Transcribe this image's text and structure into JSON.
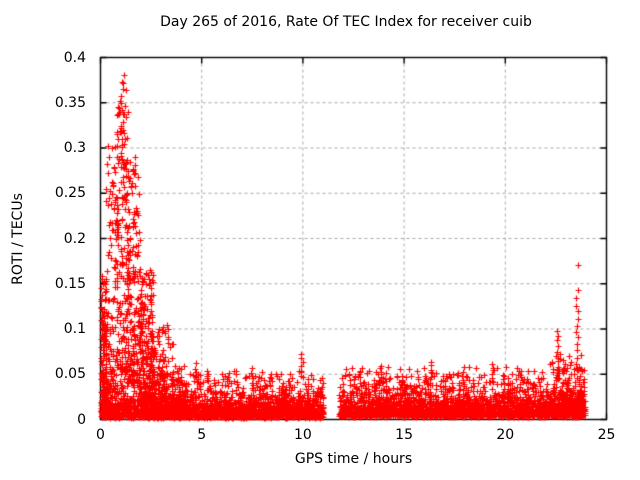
{
  "window": {
    "background": "#ffffff"
  },
  "chart_data": {
    "type": "scatter",
    "title": "Day 265 of 2016, Rate Of TEC Index for receiver cuib",
    "xlabel": "GPS time / hours",
    "ylabel": "ROTI / TECUs",
    "xlim": [
      0,
      25
    ],
    "ylim": [
      0,
      0.4
    ],
    "xticks": [
      0,
      5,
      10,
      15,
      20,
      25
    ],
    "xtick_labels": [
      "0",
      "5",
      "10",
      "15",
      "20",
      "25"
    ],
    "yticks": [
      0,
      0.05,
      0.1,
      0.15,
      0.2,
      0.25,
      0.3,
      0.35,
      0.4
    ],
    "ytick_labels": [
      "0",
      "0.05",
      "0.1",
      "0.15",
      "0.2",
      "0.25",
      "0.3",
      "0.35",
      "0.4"
    ],
    "grid": {
      "on": true,
      "style": "dashed",
      "color": "#a8a8a8",
      "dash": [
        3,
        3
      ]
    },
    "border_color": "#000000",
    "tick_length": 6,
    "ticks_mirrored": true,
    "legend": "none",
    "series_name": "ROTI",
    "marker": {
      "shape": "plus",
      "size": 7,
      "color": "#ff0000",
      "line_width": 1.2
    },
    "features": {
      "baseline_band_level": 0.02,
      "burst_hours": [
        0.2,
        3.5
      ],
      "burst_peak": 0.381,
      "data_gap_hours": [
        11.05,
        11.78
      ],
      "late_spike_hour": 23.6,
      "late_spike_peak": 0.171
    },
    "point_generation": {
      "seed": 1265,
      "bands": [
        {
          "x0": 0.0,
          "x1": 11.02,
          "n": 2450,
          "base": 0.002,
          "scale": 0.0115,
          "cap": 0.052
        },
        {
          "x0": 11.78,
          "x1": 23.95,
          "n": 2650,
          "base": 0.003,
          "scale": 0.012,
          "cap": 0.055
        }
      ],
      "clusters": [
        {
          "x0": 0.02,
          "x1": 0.3,
          "n": 150,
          "y0": 0.01,
          "y1": 0.16,
          "k": 1.25
        },
        {
          "x0": 0.25,
          "x1": 0.85,
          "n": 130,
          "y0": 0.03,
          "y1": 0.31,
          "k": 1.8
        },
        {
          "x0": 0.8,
          "x1": 1.35,
          "n": 170,
          "y0": 0.05,
          "y1": 0.375,
          "k": 1.2
        },
        {
          "x0": 1.3,
          "x1": 1.95,
          "n": 180,
          "y0": 0.04,
          "y1": 0.29,
          "k": 1.8
        },
        {
          "x0": 1.9,
          "x1": 2.6,
          "n": 200,
          "y0": 0.02,
          "y1": 0.175,
          "k": 1.4
        },
        {
          "x0": 2.5,
          "x1": 3.6,
          "n": 150,
          "y0": 0.012,
          "y1": 0.105,
          "k": 1.7
        },
        {
          "x0": 3.5,
          "x1": 4.3,
          "n": 60,
          "y0": 0.01,
          "y1": 0.06,
          "k": 1.5
        },
        {
          "x0": 22.1,
          "x1": 23.9,
          "n": 120,
          "y0": 0.01,
          "y1": 0.072,
          "k": 1.7
        }
      ],
      "columns": [
        {
          "x": 3.05,
          "n": 5,
          "y0": 0.045,
          "y1": 0.075
        },
        {
          "x": 4.7,
          "n": 5,
          "y0": 0.04,
          "y1": 0.065
        },
        {
          "x": 5.3,
          "n": 4,
          "y0": 0.04,
          "y1": 0.058
        },
        {
          "x": 6.3,
          "n": 4,
          "y0": 0.035,
          "y1": 0.055
        },
        {
          "x": 7.5,
          "n": 5,
          "y0": 0.035,
          "y1": 0.06
        },
        {
          "x": 8.4,
          "n": 4,
          "y0": 0.035,
          "y1": 0.055
        },
        {
          "x": 9.95,
          "n": 7,
          "y0": 0.045,
          "y1": 0.076
        },
        {
          "x": 12.5,
          "n": 4,
          "y0": 0.035,
          "y1": 0.05
        },
        {
          "x": 13.8,
          "n": 7,
          "y0": 0.04,
          "y1": 0.062
        },
        {
          "x": 14.9,
          "n": 4,
          "y0": 0.035,
          "y1": 0.052
        },
        {
          "x": 16.3,
          "n": 7,
          "y0": 0.04,
          "y1": 0.066
        },
        {
          "x": 17.9,
          "n": 5,
          "y0": 0.038,
          "y1": 0.06
        },
        {
          "x": 19.4,
          "n": 6,
          "y0": 0.04,
          "y1": 0.065
        },
        {
          "x": 20.8,
          "n": 5,
          "y0": 0.038,
          "y1": 0.056
        },
        {
          "x": 22.55,
          "n": 9,
          "y0": 0.05,
          "y1": 0.103
        },
        {
          "x": 23.55,
          "n": 13,
          "y0": 0.052,
          "y1": 0.146
        }
      ],
      "outliers": [
        [
          1.18,
          0.381
        ],
        [
          1.02,
          0.358
        ],
        [
          0.88,
          0.345
        ],
        [
          1.12,
          0.338
        ],
        [
          0.55,
          0.3
        ],
        [
          0.35,
          0.302
        ],
        [
          1.7,
          0.29
        ],
        [
          23.6,
          0.171
        ]
      ]
    }
  }
}
